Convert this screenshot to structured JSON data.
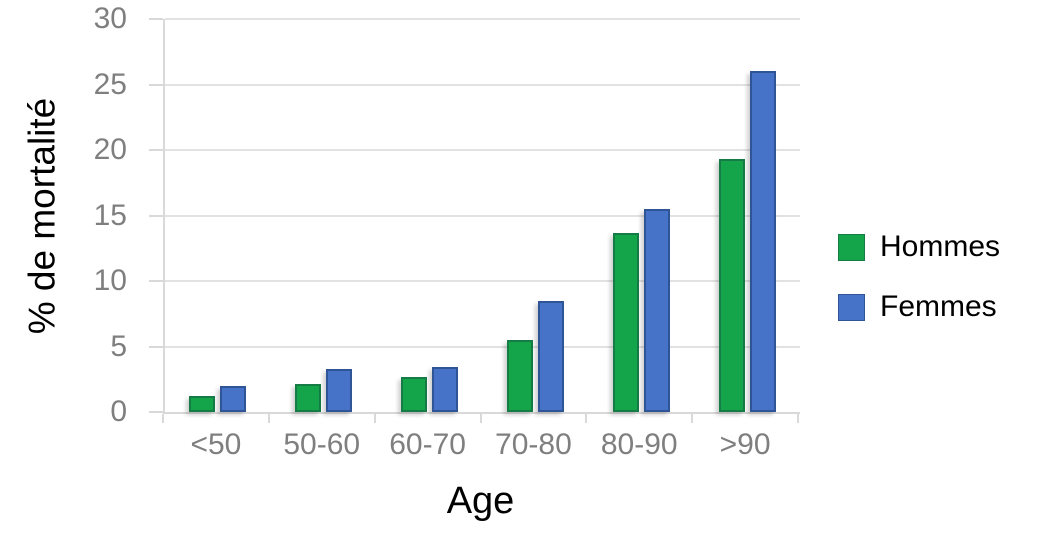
{
  "chart_data": {
    "type": "bar",
    "categories": [
      "<50",
      "50-60",
      "60-70",
      "70-80",
      "80-90",
      ">90"
    ],
    "series": [
      {
        "name": "Hommes",
        "color": "#14a54b",
        "border_color": "#157c45",
        "values": [
          1.2,
          2.1,
          2.7,
          5.5,
          13.7,
          19.3
        ]
      },
      {
        "name": "Femmes",
        "color": "#4673c8",
        "border_color": "#2f5597",
        "values": [
          2.0,
          3.3,
          3.4,
          8.5,
          15.5,
          26.0
        ]
      }
    ],
    "title": "",
    "xlabel": "Age",
    "ylabel": "% de mortalité",
    "ylim": [
      0,
      30
    ],
    "yticks": [
      0,
      5,
      10,
      15,
      20,
      25,
      30
    ],
    "grid": true,
    "legend_position": "right",
    "colors": {
      "axis": "#d9d9d9",
      "gridline": "#e2e2e2",
      "tick_label": "#7f7f7f",
      "axis_title": "#000000",
      "background": "#ffffff"
    }
  }
}
